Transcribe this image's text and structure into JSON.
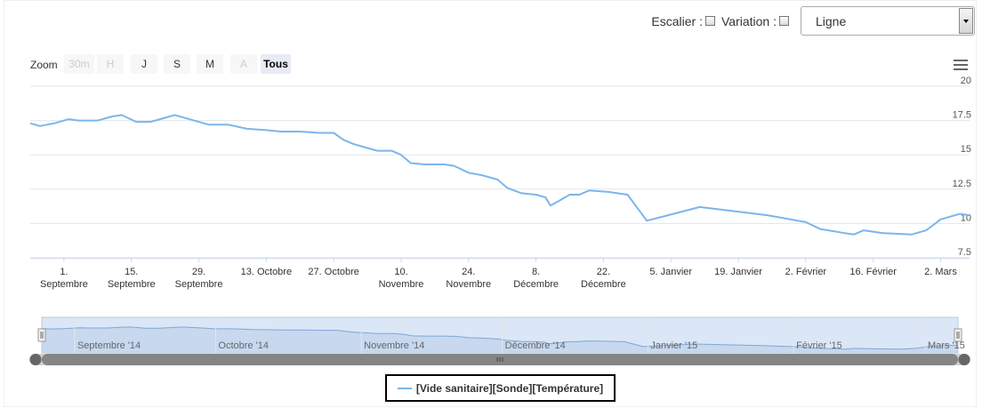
{
  "controls": {
    "escalier_label": "Escalier :",
    "variation_label": "Variation :",
    "select_value": "Ligne"
  },
  "zoom": {
    "label": "Zoom",
    "buttons": [
      {
        "label": "30m",
        "state": "disabled"
      },
      {
        "label": "H",
        "state": "disabled"
      },
      {
        "label": "J",
        "state": "normal"
      },
      {
        "label": "S",
        "state": "normal"
      },
      {
        "label": "M",
        "state": "normal"
      },
      {
        "label": "A",
        "state": "disabled"
      },
      {
        "label": "Tous",
        "state": "selected"
      }
    ]
  },
  "colors": {
    "series": "#7cb5ec",
    "grid": "#e6e6e6",
    "navigator_fill": "#dbe7f7",
    "scrollbar": "#858585"
  },
  "icons": {
    "menu": "hamburger-menu-icon"
  },
  "chart_data": {
    "type": "line",
    "title": "",
    "xlabel": "",
    "ylabel": "",
    "ylim": [
      7.5,
      20
    ],
    "yticks": [
      7.5,
      10,
      12.5,
      15,
      17.5,
      20
    ],
    "xlim": [
      "2014-08-25",
      "2015-03-08"
    ],
    "grid": true,
    "legend": "bottom-center",
    "xticks": [
      {
        "date": "2014-09-01",
        "l1": "1.",
        "l2": "Septembre"
      },
      {
        "date": "2014-09-15",
        "l1": "15.",
        "l2": "Septembre"
      },
      {
        "date": "2014-09-29",
        "l1": "29.",
        "l2": "Septembre"
      },
      {
        "date": "2014-10-13",
        "l1": "13. Octobre",
        "l2": ""
      },
      {
        "date": "2014-10-27",
        "l1": "27. Octobre",
        "l2": ""
      },
      {
        "date": "2014-11-10",
        "l1": "10.",
        "l2": "Novembre"
      },
      {
        "date": "2014-11-24",
        "l1": "24.",
        "l2": "Novembre"
      },
      {
        "date": "2014-12-08",
        "l1": "8.",
        "l2": "Décembre"
      },
      {
        "date": "2014-12-22",
        "l1": "22.",
        "l2": "Décembre"
      },
      {
        "date": "2015-01-05",
        "l1": "5. Janvier",
        "l2": ""
      },
      {
        "date": "2015-01-19",
        "l1": "19. Janvier",
        "l2": ""
      },
      {
        "date": "2015-02-02",
        "l1": "2. Février",
        "l2": ""
      },
      {
        "date": "2015-02-16",
        "l1": "16. Février",
        "l2": ""
      },
      {
        "date": "2015-03-02",
        "l1": "2. Mars",
        "l2": ""
      }
    ],
    "series": [
      {
        "name": "[Vide sanitaire][Sonde][Température]",
        "points": [
          [
            "2014-08-25",
            17.3
          ],
          [
            "2014-08-27",
            17.1
          ],
          [
            "2014-08-30",
            17.3
          ],
          [
            "2014-09-02",
            17.6
          ],
          [
            "2014-09-04",
            17.5
          ],
          [
            "2014-09-08",
            17.5
          ],
          [
            "2014-09-11",
            17.8
          ],
          [
            "2014-09-13",
            17.9
          ],
          [
            "2014-09-16",
            17.4
          ],
          [
            "2014-09-19",
            17.4
          ],
          [
            "2014-09-22",
            17.7
          ],
          [
            "2014-09-24",
            17.9
          ],
          [
            "2014-09-29",
            17.4
          ],
          [
            "2014-10-01",
            17.2
          ],
          [
            "2014-10-05",
            17.2
          ],
          [
            "2014-10-09",
            16.9
          ],
          [
            "2014-10-13",
            16.8
          ],
          [
            "2014-10-16",
            16.7
          ],
          [
            "2014-10-20",
            16.7
          ],
          [
            "2014-10-24",
            16.6
          ],
          [
            "2014-10-27",
            16.6
          ],
          [
            "2014-10-29",
            16.1
          ],
          [
            "2014-10-31",
            15.8
          ],
          [
            "2014-11-03",
            15.5
          ],
          [
            "2014-11-05",
            15.3
          ],
          [
            "2014-11-08",
            15.3
          ],
          [
            "2014-11-10",
            15.0
          ],
          [
            "2014-11-12",
            14.4
          ],
          [
            "2014-11-15",
            14.3
          ],
          [
            "2014-11-19",
            14.3
          ],
          [
            "2014-11-21",
            14.2
          ],
          [
            "2014-11-24",
            13.7
          ],
          [
            "2014-11-27",
            13.5
          ],
          [
            "2014-11-30",
            13.2
          ],
          [
            "2014-12-02",
            12.6
          ],
          [
            "2014-12-05",
            12.2
          ],
          [
            "2014-12-08",
            12.1
          ],
          [
            "2014-12-10",
            11.9
          ],
          [
            "2014-12-11",
            11.3
          ],
          [
            "2014-12-13",
            11.7
          ],
          [
            "2014-12-15",
            12.1
          ],
          [
            "2014-12-17",
            12.1
          ],
          [
            "2014-12-19",
            12.4
          ],
          [
            "2014-12-23",
            12.3
          ],
          [
            "2014-12-27",
            12.1
          ],
          [
            "2014-12-31",
            10.2
          ],
          [
            "2015-01-11",
            11.2
          ],
          [
            "2015-01-25",
            10.6
          ],
          [
            "2015-02-02",
            10.1
          ],
          [
            "2015-02-05",
            9.6
          ],
          [
            "2015-02-10",
            9.3
          ],
          [
            "2015-02-12",
            9.2
          ],
          [
            "2015-02-14",
            9.5
          ],
          [
            "2015-02-18",
            9.3
          ],
          [
            "2015-02-24",
            9.2
          ],
          [
            "2015-02-27",
            9.5
          ],
          [
            "2015-03-02",
            10.3
          ],
          [
            "2015-03-06",
            10.7
          ],
          [
            "2015-03-08",
            10.6
          ]
        ]
      }
    ],
    "navigator": {
      "labels": [
        "Septembre '14",
        "Octobre '14",
        "Novembre '14",
        "Décembre '14",
        "Janvier '15",
        "Février '15",
        "Mars '15"
      ],
      "label_dates": [
        "2014-09-01",
        "2014-10-01",
        "2014-11-01",
        "2014-12-01",
        "2015-01-01",
        "2015-02-01",
        "2015-03-01"
      ]
    }
  }
}
